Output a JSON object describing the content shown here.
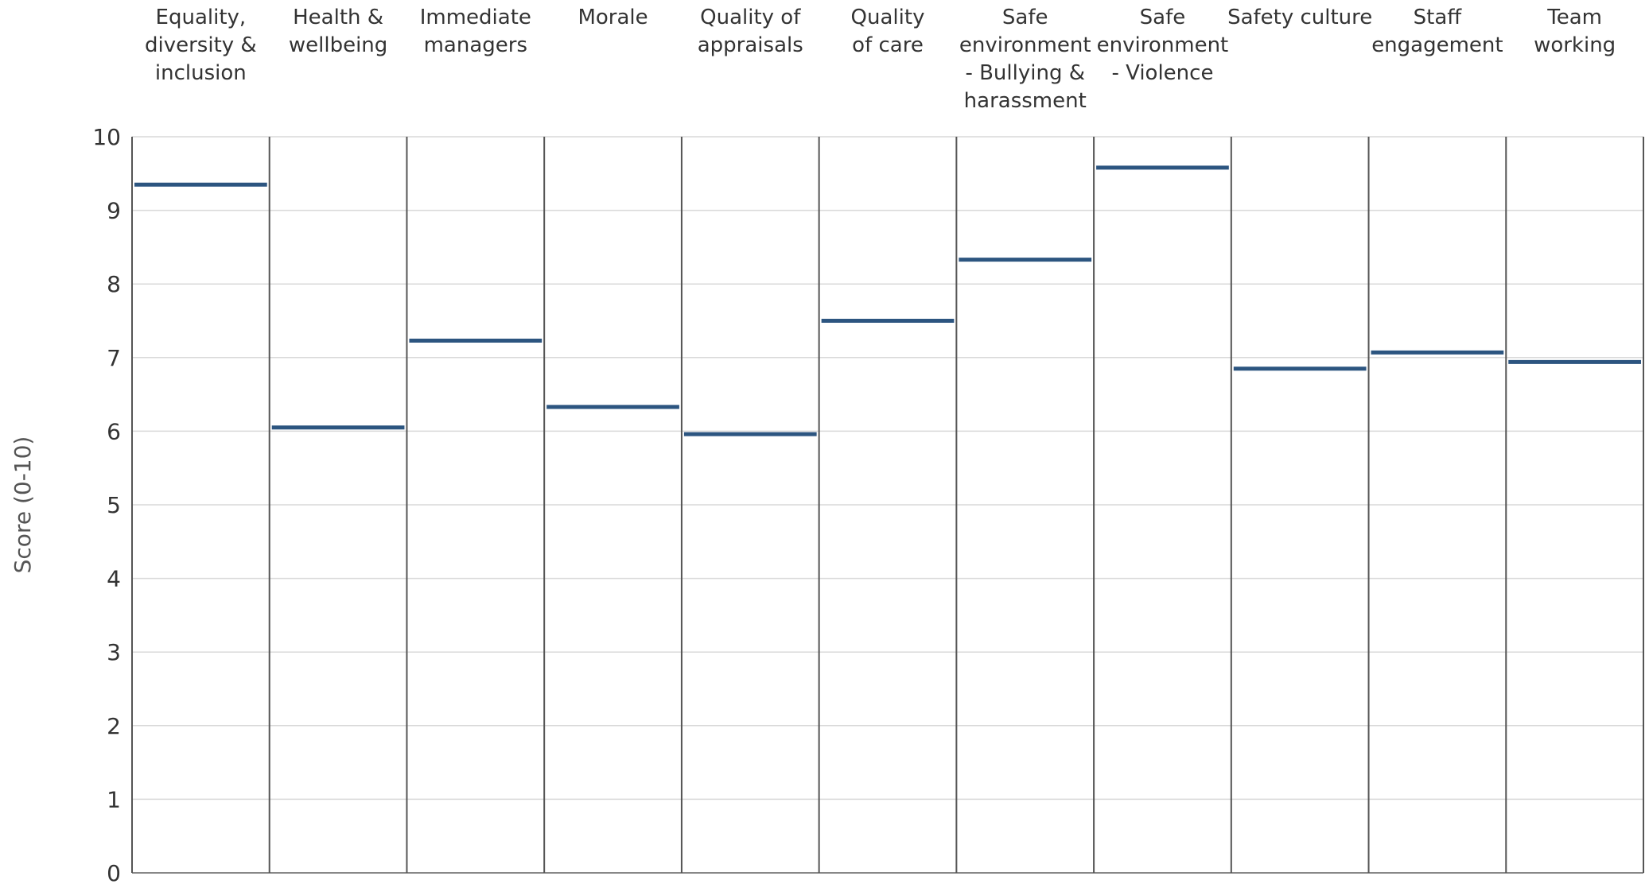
{
  "chart_data": {
    "type": "bar",
    "ylabel": "Score (0-10)",
    "ylim": [
      0,
      10
    ],
    "yticks": [
      0,
      1,
      2,
      3,
      4,
      5,
      6,
      7,
      8,
      9,
      10
    ],
    "grid": true,
    "legend": "none",
    "marker_color": "#2c5580",
    "categories": [
      [
        "Equality,",
        "diversity &",
        "inclusion"
      ],
      [
        "Health &",
        "wellbeing"
      ],
      [
        "Immediate",
        "managers"
      ],
      [
        "Morale"
      ],
      [
        "Quality of",
        "appraisals"
      ],
      [
        "Quality",
        "of care"
      ],
      [
        "Safe",
        "environment",
        "- Bullying &",
        "harassment"
      ],
      [
        "Safe",
        "environment",
        "- Violence"
      ],
      [
        "Safety culture"
      ],
      [
        "Staff",
        "engagement"
      ],
      [
        "Team",
        "working"
      ]
    ],
    "values": [
      9.35,
      6.05,
      7.23,
      6.33,
      5.96,
      7.5,
      8.33,
      9.58,
      6.85,
      7.07,
      6.94
    ]
  }
}
